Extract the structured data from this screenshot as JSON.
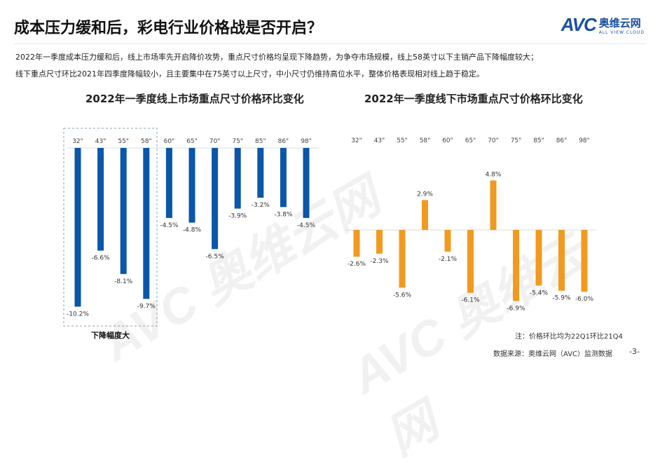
{
  "header": {
    "title": "成本压力缓和后，彩电行业价格战是否开启？",
    "logo_text": "AVC",
    "logo_cn": "奥维云网",
    "logo_en": "ALL VIEW CLOUD"
  },
  "description": [
    "2022年一季度成本压力缓和后，线上市场率先开启降价攻势，重点尺寸价格均呈现下降趋势，为争夺市场规模，线上58英寸以下主销产品下降幅度较大；",
    "线下重点尺寸环比2021年四季度降幅较小，且主要集中在75英寸以上尺寸，中小尺寸仍维持高位水平，整体价格表现相对线上趋于稳定。"
  ],
  "highlight_label": "下降幅度大",
  "note": "注：价格环比均为22Q1环比21Q4",
  "source": "数据来源：奥维云网（AVC）监测数据",
  "page": "-3-",
  "chart_data": [
    {
      "type": "bar",
      "title": "2022年一季度线上市场重点尺寸价格环比变化",
      "categories": [
        "32\"",
        "43\"",
        "55\"",
        "58\"",
        "60\"",
        "65\"",
        "70\"",
        "75\"",
        "85\"",
        "86\"",
        "98\""
      ],
      "values": [
        -10.2,
        -6.6,
        -8.1,
        -9.7,
        -4.5,
        -4.8,
        -6.5,
        -3.9,
        -3.2,
        -3.8,
        -4.5
      ],
      "labels": [
        "-10.2%",
        "-6.6%",
        "-8.1%",
        "-9.7%",
        "-4.5%",
        "-4.8%",
        "-6.5%",
        "-3.9%",
        "-3.2%",
        "-3.8%",
        "-4.5%"
      ],
      "unit": "%",
      "color": "#0a56a8",
      "grid": false
    },
    {
      "type": "bar",
      "title": "2022年一季度线下市场重点尺寸价格环比变化",
      "categories": [
        "32\"",
        "43\"",
        "55\"",
        "58\"",
        "60\"",
        "65\"",
        "70\"",
        "75\"",
        "85\"",
        "86\"",
        "98\""
      ],
      "values": [
        -2.6,
        -2.3,
        -5.6,
        2.9,
        -2.1,
        -6.1,
        4.8,
        -6.9,
        -5.4,
        -5.9,
        -6.0
      ],
      "labels": [
        "-2.6%",
        "-2.3%",
        "-5.6%",
        "2.9%",
        "-2.1%",
        "-6.1%",
        "4.8%",
        "-6.9%",
        "-5.4%",
        "-5.9%",
        "-6.0%"
      ],
      "unit": "%",
      "color": "#f29a1f",
      "grid": false
    }
  ]
}
